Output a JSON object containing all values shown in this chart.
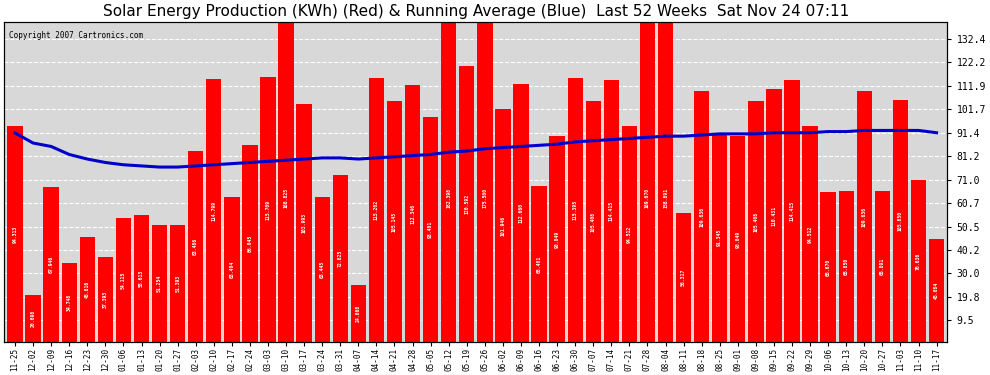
{
  "title": "Solar Energy Production (KWh) (Red) & Running Average (Blue)  Last 52 Weeks  Sat Nov 24 07:11",
  "copyright": "Copyright 2007 Cartronics.com",
  "bar_color": "#ff0000",
  "line_color": "#0000cc",
  "bg_color": "#ffffff",
  "yticks": [
    9.5,
    19.8,
    30.0,
    40.2,
    50.5,
    60.7,
    71.0,
    81.2,
    91.4,
    101.7,
    111.9,
    122.2,
    132.4
  ],
  "ylim": [
    0,
    140
  ],
  "title_fontsize": 11,
  "dates": [
    "11-25",
    "12-02",
    "12-09",
    "12-16",
    "12-23",
    "12-30",
    "01-06",
    "01-13",
    "01-20",
    "01-27",
    "02-03",
    "02-10",
    "02-17",
    "02-24",
    "03-03",
    "03-10",
    "03-17",
    "03-24",
    "03-31",
    "04-07",
    "04-14",
    "04-21",
    "04-28",
    "05-05",
    "05-12",
    "05-19",
    "05-26",
    "06-02",
    "06-09",
    "06-16",
    "06-23",
    "06-30",
    "07-07",
    "07-14",
    "07-21",
    "07-28",
    "08-04",
    "08-11",
    "08-18",
    "08-25",
    "09-01",
    "09-08",
    "09-15",
    "09-22",
    "09-29",
    "10-06",
    "10-13",
    "10-20",
    "10-27",
    "11-03",
    "11-10",
    "11-17"
  ],
  "bar_values": [
    94.313,
    20.698,
    67.946,
    34.748,
    45.816,
    37.393,
    54.115,
    55.613,
    51.254,
    51.393,
    83.486,
    114.799,
    63.404,
    86.045,
    115.709,
    168.825,
    103.993,
    63.445,
    72.825,
    24.868,
    115.202,
    105.145,
    112.346,
    98.401,
    182.398,
    120.592,
    175.5,
    101.946,
    112.66,
    68.401,
    90.049,
    115.395,
    105.408,
    114.415,
    94.512,
    169.67,
    158.891,
    56.317,
    109.636,
    91.345,
    90.049,
    105.408,
    110.431,
    114.415,
    94.512,
    65.67,
    65.85,
    109.636,
    65.891,
    105.85,
    70.636,
    45.084
  ],
  "avg_values": [
    91.4,
    87.0,
    85.5,
    82.0,
    80.0,
    78.5,
    77.5,
    77.0,
    76.5,
    76.5,
    77.0,
    77.5,
    78.0,
    78.5,
    79.0,
    79.5,
    80.0,
    80.5,
    80.5,
    80.0,
    80.5,
    81.0,
    81.5,
    82.0,
    83.0,
    83.5,
    84.5,
    85.0,
    85.5,
    86.0,
    86.5,
    87.5,
    88.0,
    88.5,
    89.0,
    89.5,
    90.0,
    90.0,
    90.5,
    91.0,
    91.0,
    91.0,
    91.5,
    91.5,
    91.5,
    92.0,
    92.0,
    92.5,
    92.5,
    92.5,
    92.5,
    91.5
  ]
}
